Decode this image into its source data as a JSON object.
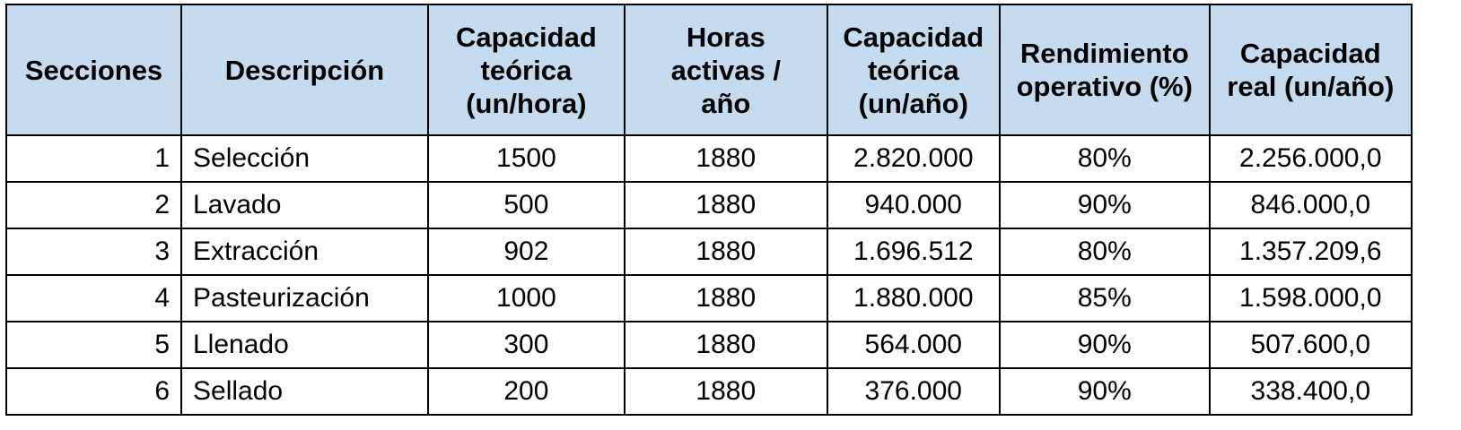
{
  "table": {
    "headers": [
      "Secciones",
      "Descripción",
      "Capacidad teórica (un/hora)",
      "Horas activas / año",
      "Capacidad teórica (un/año)",
      "Rendimiento operativo (%)",
      "Capacidad real (un/año)"
    ],
    "rows": [
      [
        "1",
        "Selección",
        "1500",
        "1880",
        "2.820.000",
        "80%",
        "2.256.000,0"
      ],
      [
        "2",
        "Lavado",
        "500",
        "1880",
        "940.000",
        "90%",
        "846.000,0"
      ],
      [
        "3",
        "Extracción",
        "902",
        "1880",
        "1.696.512",
        "80%",
        "1.357.209,6"
      ],
      [
        "4",
        "Pasteurización",
        "1000",
        "1880",
        "1.880.000",
        "85%",
        "1.598.000,0"
      ],
      [
        "5",
        "Llenado",
        "300",
        "1880",
        "564.000",
        "90%",
        "507.600,0"
      ],
      [
        "6",
        "Sellado",
        "200",
        "1880",
        "376.000",
        "90%",
        "338.400,0"
      ]
    ],
    "header_bg": "#c5dcf0"
  }
}
